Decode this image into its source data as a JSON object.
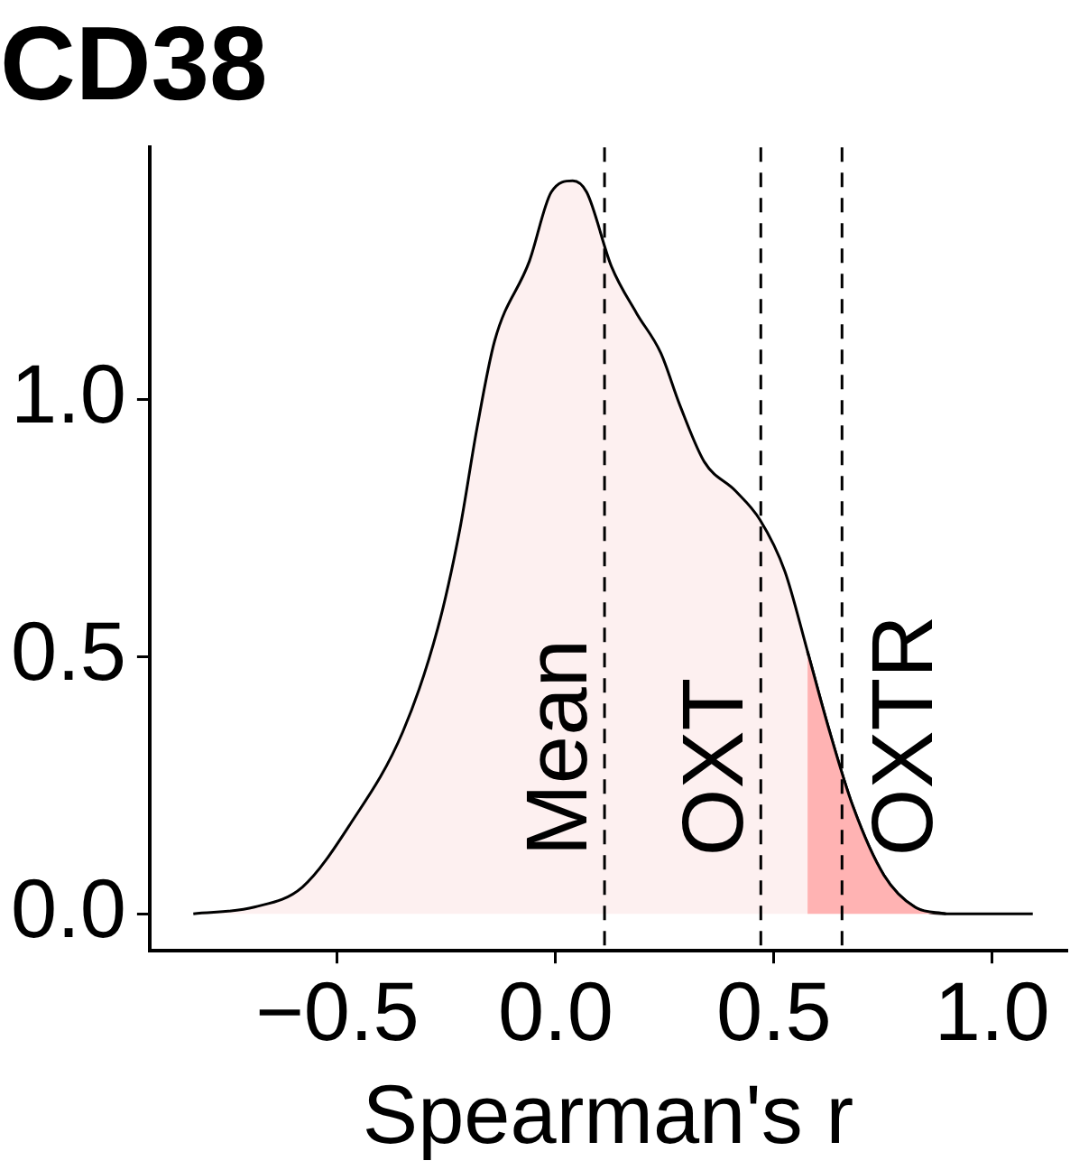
{
  "chart_data": {
    "type": "area",
    "title": "CD38",
    "xlabel": "Spearman's r",
    "xlim": [
      -0.93,
      1.17
    ],
    "ylim": [
      -0.072,
      1.49
    ],
    "xticks": [
      {
        "value": -0.5,
        "label": "−0.5"
      },
      {
        "value": 0,
        "label": "0.0"
      },
      {
        "value": 0.5,
        "label": "0.5"
      },
      {
        "value": 1,
        "label": "1.0"
      }
    ],
    "yticks": [
      {
        "value": 0,
        "label": "0.0"
      },
      {
        "value": 0.5,
        "label": "0.5"
      },
      {
        "value": 1,
        "label": "1.0"
      }
    ],
    "grid": false,
    "series": [
      {
        "color": "#fdf0f0",
        "x": [
          -0.83,
          -0.69,
          -0.58,
          -0.47,
          -0.35,
          -0.27,
          -0.22,
          -0.18,
          -0.14,
          -0.06,
          -0.01,
          0.039,
          0.071,
          0.128,
          0.185,
          0.241,
          0.284,
          0.341,
          0.412,
          0.468,
          0.525,
          0.577,
          0.624,
          0.681,
          0.752,
          0.823,
          0.894,
          1.093
        ],
        "values": [
          0,
          0.013,
          0.052,
          0.175,
          0.354,
          0.555,
          0.745,
          0.945,
          1.113,
          1.269,
          1.403,
          1.425,
          1.403,
          1.258,
          1.168,
          1.09,
          0.99,
          0.878,
          0.822,
          0.766,
          0.666,
          0.51,
          0.365,
          0.209,
          0.075,
          0.013,
          0,
          0
        ]
      },
      {
        "color": "#ffb3b3",
        "x": [
          0.577,
          0.624,
          0.681,
          0.752,
          0.823,
          0.894
        ],
        "values": [
          0.51,
          0.365,
          0.209,
          0.075,
          0.013,
          0
        ]
      }
    ],
    "ref_lines": [
      {
        "axis": "x",
        "value": 0.112,
        "label": "Mean",
        "line_style": "dashed",
        "color": "#000000"
      },
      {
        "axis": "x",
        "value": 0.47,
        "label": "OXT",
        "line_style": "dashed",
        "color": "#000000"
      },
      {
        "axis": "x",
        "value": 0.656,
        "label": "OXTR",
        "line_style": "dashed",
        "color": "#000000"
      }
    ]
  }
}
